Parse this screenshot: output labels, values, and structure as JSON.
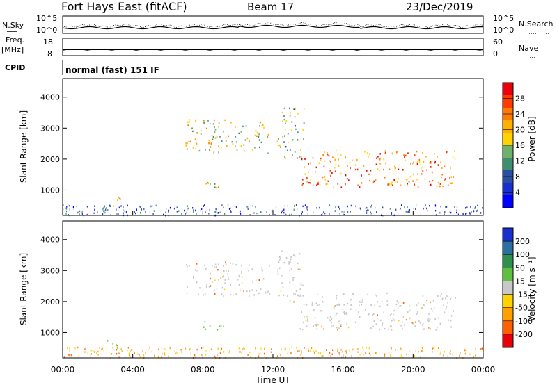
{
  "header": {
    "station": "Fort Hays East (fitACF)",
    "beam": "Beam 17",
    "date": "23/Dec/2019"
  },
  "strip_labels": {
    "nsky": "N.Sky",
    "nsearch": "N.Search",
    "freq": "Freq.",
    "freq_unit": "[MHz]",
    "nave": "Nave",
    "cpid": "CPID",
    "cpid_text": "normal (fast) 151 IF",
    "noise_ticks_left": [
      "10^5",
      "10^0"
    ],
    "noise_ticks_right": [
      "10^5",
      "10^0"
    ],
    "freq_ticks": [
      "18",
      "8"
    ],
    "nave_ticks": [
      "60",
      "0"
    ]
  },
  "chart_data": [
    {
      "type": "heatmap",
      "name": "power",
      "ylabel": "Slant Range [km]",
      "yticks": [
        1000,
        2000,
        3000,
        4000
      ],
      "ylim": [
        180,
        4600
      ],
      "xlim": [
        0,
        24
      ],
      "colorbar": {
        "label": "Power [dB]",
        "ticks": [
          "28",
          "24",
          "20",
          "16",
          "12",
          "8",
          "4"
        ],
        "colors": [
          "#e8000a",
          "#ff3a00",
          "#ff7a00",
          "#ffb000",
          "#ffd200",
          "#6fb06a",
          "#3f8f6f",
          "#2c4ea0",
          "#1a2fd0",
          "#0000ff"
        ]
      },
      "regions": [
        {
          "x0": 7.0,
          "x1": 11.8,
          "y0": 2200,
          "y1": 3300,
          "level": "mid"
        },
        {
          "x0": 8.0,
          "x1": 9.5,
          "y0": 1100,
          "y1": 1400,
          "level": "mid"
        },
        {
          "x0": 2.3,
          "x1": 3.3,
          "y0": 500,
          "y1": 800,
          "level": "mid"
        },
        {
          "x0": 12.2,
          "x1": 13.8,
          "y0": 2000,
          "y1": 3700,
          "level": "low"
        },
        {
          "x0": 13.5,
          "x1": 22.5,
          "y0": 1100,
          "y1": 2300,
          "level": "high"
        }
      ]
    },
    {
      "type": "heatmap",
      "name": "velocity",
      "ylabel": "Slant Range [km]",
      "xlabel": "Time UT",
      "xticks": [
        "00:00",
        "04:00",
        "08:00",
        "12:00",
        "16:00",
        "20:00",
        "00:00"
      ],
      "yticks": [
        1000,
        2000,
        3000,
        4000
      ],
      "ylim": [
        180,
        4600
      ],
      "xlim": [
        0,
        24
      ],
      "colorbar": {
        "label": "Velocity [m s⁻¹]",
        "ticks": [
          "200",
          "100",
          "50",
          "15",
          "-15",
          "-50",
          "-100",
          "-200"
        ],
        "colors": [
          "#1a2fd0",
          "#2c6fa0",
          "#2f8f4f",
          "#5fc040",
          "#c8c8c8",
          "#ffd200",
          "#ffa000",
          "#ff6000",
          "#e8000a"
        ]
      },
      "regions": [
        {
          "x0": 7.0,
          "x1": 11.8,
          "y0": 2200,
          "y1": 3300,
          "level": "grey"
        },
        {
          "x0": 8.0,
          "x1": 9.5,
          "y0": 1100,
          "y1": 1400,
          "level": "green"
        },
        {
          "x0": 2.3,
          "x1": 3.3,
          "y0": 500,
          "y1": 800,
          "level": "green"
        },
        {
          "x0": 12.2,
          "x1": 13.8,
          "y0": 2000,
          "y1": 3700,
          "level": "grey"
        },
        {
          "x0": 13.5,
          "x1": 22.5,
          "y0": 1100,
          "y1": 2300,
          "level": "grey"
        }
      ]
    }
  ]
}
